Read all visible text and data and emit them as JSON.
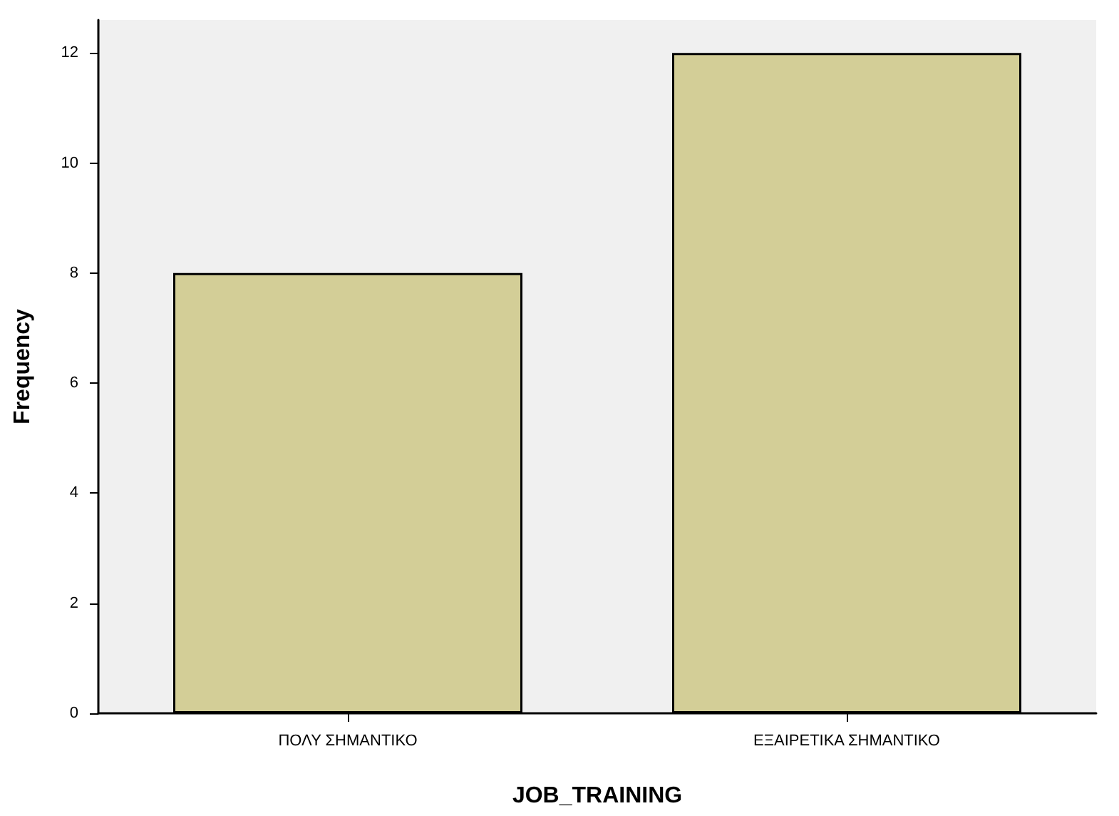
{
  "chart_data": {
    "type": "bar",
    "xlabel": "JOB_TRAINING",
    "ylabel": "Frequency",
    "categories": [
      "ΠΟΛΥ ΣΗΜΑΝΤΙΚΟ",
      "ΕΞΑΙΡΕΤΙΚΑ ΣΗΜΑΝΤΙΚΟ"
    ],
    "values": [
      8,
      12
    ],
    "color": "#d3ce97",
    "ylim": [
      0,
      12.6
    ],
    "yticks": [
      0,
      2,
      4,
      6,
      8,
      10,
      12
    ],
    "grid": false
  }
}
